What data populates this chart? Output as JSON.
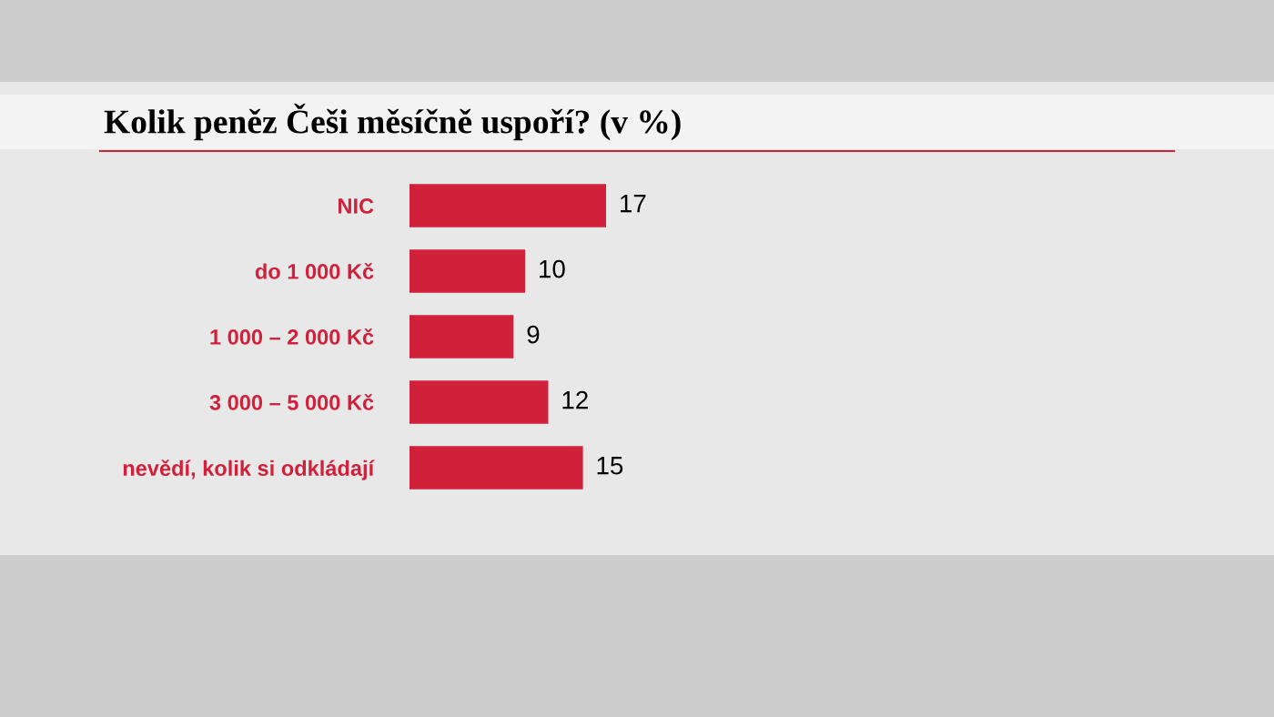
{
  "chart_data": {
    "type": "bar",
    "orientation": "horizontal",
    "title": "Kolik peněz Češi měsíčně uspoří? (v %)",
    "categories": [
      "NIC",
      "do 1 000 Kč",
      "1 000 – 2 000 Kč",
      "3 000 – 5 000 Kč",
      "nevědí, kolik si odkládají"
    ],
    "values": [
      17,
      10,
      9,
      12,
      15
    ],
    "color": "#d0203a",
    "data_labels": true,
    "tick_labels": "y",
    "grid": false,
    "legend": false
  }
}
